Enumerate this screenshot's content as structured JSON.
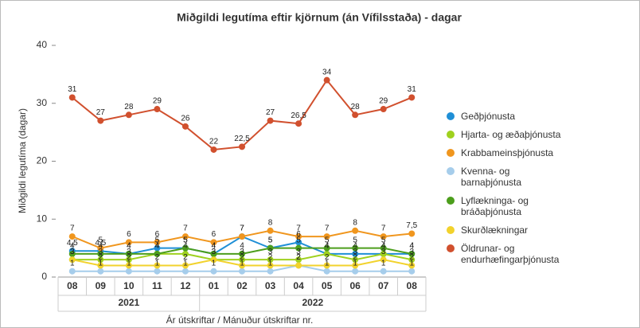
{
  "chart_data": {
    "type": "line",
    "title": "Miðgildi legutíma eftir kjörnum (án Vífilsstaða) - dagar",
    "y_label": "Miðgildi legutíma (dagar)",
    "x_label": "Ár útskriftar / Mánuður útskriftar nr.",
    "categories": [
      "08",
      "09",
      "10",
      "11",
      "12",
      "01",
      "02",
      "03",
      "04",
      "05",
      "06",
      "07",
      "08"
    ],
    "year_groups": [
      {
        "label": "2021",
        "span": 5
      },
      {
        "label": "2022",
        "span": 8
      }
    ],
    "ylim": [
      0,
      40
    ],
    "yticks": [
      0,
      10,
      20,
      30,
      40
    ],
    "grid": false,
    "legend": "right",
    "series": [
      {
        "name": "Geðþjónusta",
        "color": "#1f8fd6",
        "values": [
          4.5,
          4.5,
          4,
          5,
          5,
          4,
          7,
          5,
          6,
          4,
          4,
          4,
          4
        ],
        "value_labels": [
          "4,5",
          "4,5",
          "4",
          "5",
          "5",
          "4",
          "7",
          "5",
          "6",
          "4",
          "4",
          "4",
          "4"
        ]
      },
      {
        "name": "Hjarta- og æðaþjónusta",
        "color": "#9fd11e",
        "values": [
          3,
          3,
          3,
          4,
          4,
          3,
          3,
          3,
          3,
          4,
          3,
          4,
          3
        ]
      },
      {
        "name": "Krabbameinsþjónusta",
        "color": "#f0961e",
        "values": [
          7,
          5,
          6,
          6,
          7,
          6,
          7,
          8,
          7,
          7,
          8,
          7,
          7.5
        ],
        "value_labels": [
          "7",
          "5",
          "6",
          "6",
          "7",
          "6",
          "7",
          "8",
          "7",
          "7",
          "8",
          "7",
          "7,5"
        ]
      },
      {
        "name": "Kvenna- og barnaþjónusta",
        "color": "#a6cdeb",
        "values": [
          1,
          1,
          1,
          1,
          1,
          1,
          1,
          1,
          2,
          1,
          1,
          1,
          1
        ]
      },
      {
        "name": "Lyflækninga- og bráðaþjónusta",
        "color": "#4c9e1c",
        "values": [
          4,
          4,
          4,
          4,
          5,
          4,
          4,
          5,
          5,
          5,
          5,
          5,
          4
        ]
      },
      {
        "name": "Skurðlækningar",
        "color": "#f2d22c",
        "values": [
          3,
          2,
          2,
          2,
          2,
          3,
          2,
          2,
          2,
          2,
          2,
          3,
          2
        ]
      },
      {
        "name": "Öldrunar- og endurhæfingarþjónusta",
        "color": "#d1502e",
        "values": [
          31,
          27,
          28,
          29,
          26,
          22,
          22.5,
          27,
          26.5,
          34,
          28,
          29,
          31
        ],
        "value_labels": [
          "31",
          "27",
          "28",
          "29",
          "26",
          "22",
          "22,5",
          "27",
          "26,5",
          "34",
          "28",
          "29",
          "31"
        ]
      }
    ]
  }
}
